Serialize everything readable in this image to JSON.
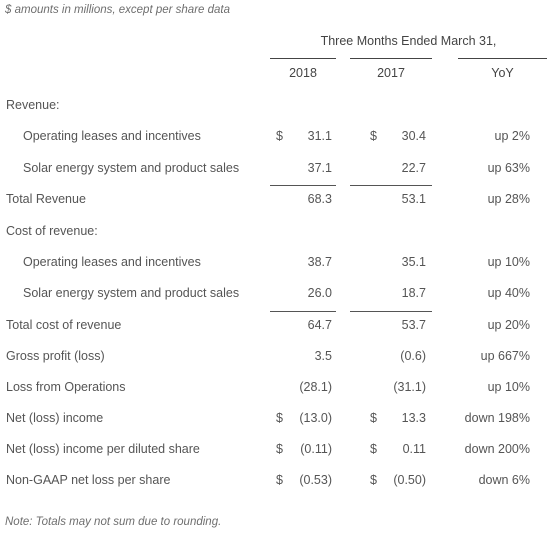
{
  "caption": "$ amounts in millions, except per share data",
  "period_header": "Three Months Ended March 31,",
  "columns": [
    "2018",
    "2017",
    "YoY"
  ],
  "rows": [
    {
      "label": "Revenue:",
      "indent": 0,
      "d2018": "",
      "v2018": "",
      "d2017": "",
      "v2017": "",
      "yoy": ""
    },
    {
      "label": "Operating leases and incentives",
      "indent": 1,
      "d2018": "$",
      "v2018": "31.1",
      "d2017": "$",
      "v2017": "30.4",
      "yoy": "up 2%"
    },
    {
      "label": "Solar energy system and product sales",
      "indent": 1,
      "d2018": "",
      "v2018": "37.1",
      "d2017": "",
      "v2017": "22.7",
      "yoy": "up 63%"
    },
    {
      "label": "Total Revenue",
      "indent": 0,
      "d2018": "",
      "v2018": "68.3",
      "d2017": "",
      "v2017": "53.1",
      "yoy": "up 28%"
    },
    {
      "label": "Cost of revenue:",
      "indent": 0,
      "d2018": "",
      "v2018": "",
      "d2017": "",
      "v2017": "",
      "yoy": ""
    },
    {
      "label": "Operating leases and incentives",
      "indent": 1,
      "d2018": "",
      "v2018": "38.7",
      "d2017": "",
      "v2017": "35.1",
      "yoy": "up 10%"
    },
    {
      "label": "Solar energy system and product sales",
      "indent": 1,
      "d2018": "",
      "v2018": "26.0",
      "d2017": "",
      "v2017": "18.7",
      "yoy": "up 40%"
    },
    {
      "label": "Total cost of revenue",
      "indent": 0,
      "d2018": "",
      "v2018": "64.7",
      "d2017": "",
      "v2017": "53.7",
      "yoy": "up 20%"
    },
    {
      "label": "Gross profit (loss)",
      "indent": 0,
      "d2018": "",
      "v2018": "3.5",
      "d2017": "",
      "v2017": "(0.6)",
      "yoy": "up 667%"
    },
    {
      "label": "Loss from Operations",
      "indent": 0,
      "d2018": "",
      "v2018": "(28.1)",
      "d2017": "",
      "v2017": "(31.1)",
      "yoy": "up 10%"
    },
    {
      "label": "Net (loss) income",
      "indent": 0,
      "d2018": "$",
      "v2018": "(13.0)",
      "d2017": "$",
      "v2017": "13.3",
      "yoy": "down 198%"
    },
    {
      "label": "Net (loss) income per diluted share",
      "indent": 0,
      "d2018": "$",
      "v2018": "(0.11)",
      "d2017": "$",
      "v2017": "0.11",
      "yoy": "down 200%"
    },
    {
      "label": "Non-GAAP net loss per share",
      "indent": 0,
      "d2018": "$",
      "v2018": "(0.53)",
      "d2017": "$",
      "v2017": "(0.50)",
      "yoy": "down 6%"
    }
  ],
  "note": "Note: Totals may not sum due to rounding."
}
